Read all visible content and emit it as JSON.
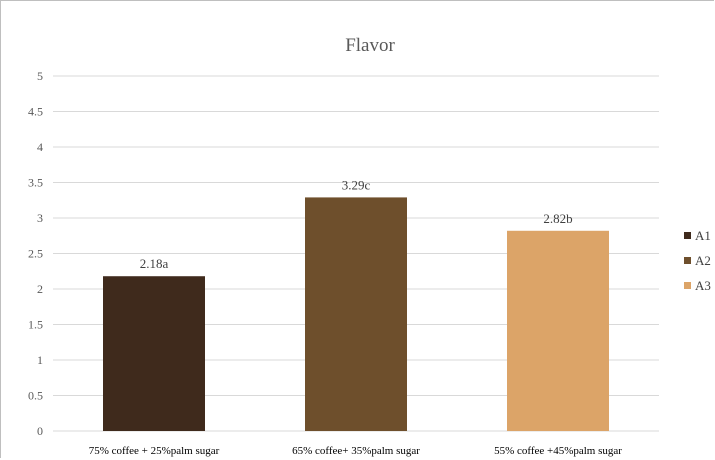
{
  "chart_data": {
    "type": "bar",
    "title": "Flavor",
    "categories": [
      "75% coffee + 25%palm sugar",
      "65% coffee+ 35%palm sugar",
      "55% coffee +45%palm sugar"
    ],
    "values": [
      2.18,
      3.29,
      2.82
    ],
    "data_labels": [
      "2.18a",
      "3.29c",
      "2.82b"
    ],
    "legend": [
      "A1",
      "A2",
      "A3"
    ],
    "colors": [
      "#3f2a1c",
      "#6e4f2c",
      "#dca468"
    ],
    "yticks": [
      "0",
      "0.5",
      "1",
      "1.5",
      "2",
      "2.5",
      "3",
      "3.5",
      "4",
      "4.5",
      "5"
    ],
    "ylim": [
      0,
      5
    ],
    "xlabel": "",
    "ylabel": "",
    "grid": true,
    "legend_position": "right"
  }
}
